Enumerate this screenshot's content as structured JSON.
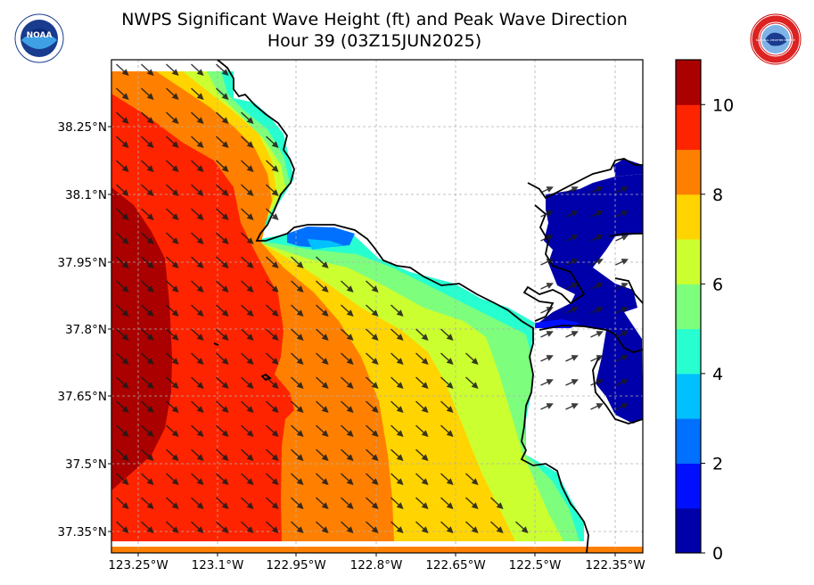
{
  "title": {
    "line1": "NWPS Significant Wave Height (ft) and Peak Wave Direction",
    "line2": "Hour 39 (03Z15JUN2025)"
  },
  "logos": {
    "left": "noaa-logo",
    "left_text": "NOAA",
    "right": "nws-logo",
    "right_text": "NATIONAL WEATHER SERVICE"
  },
  "map": {
    "lat_ticks": [
      "38.25°N",
      "38.1°N",
      "37.95°N",
      "37.8°N",
      "37.65°N",
      "37.5°N",
      "37.35°N"
    ],
    "lon_ticks": [
      "123.25°W",
      "123.1°W",
      "122.95°W",
      "122.8°W",
      "122.65°W",
      "122.5°W",
      "122.35°W"
    ],
    "grid": true,
    "arrow_direction": "toward southeast"
  },
  "colorbar": {
    "labels": [
      "0",
      "2",
      "4",
      "6",
      "8",
      "10"
    ],
    "colors": [
      "#0000aa",
      "#0010ff",
      "#0070ff",
      "#00c0ff",
      "#28ffd0",
      "#7dff7d",
      "#ccff30",
      "#ffd400",
      "#ff8000",
      "#ff2400",
      "#aa0000"
    ],
    "range": [
      0,
      11
    ]
  }
}
